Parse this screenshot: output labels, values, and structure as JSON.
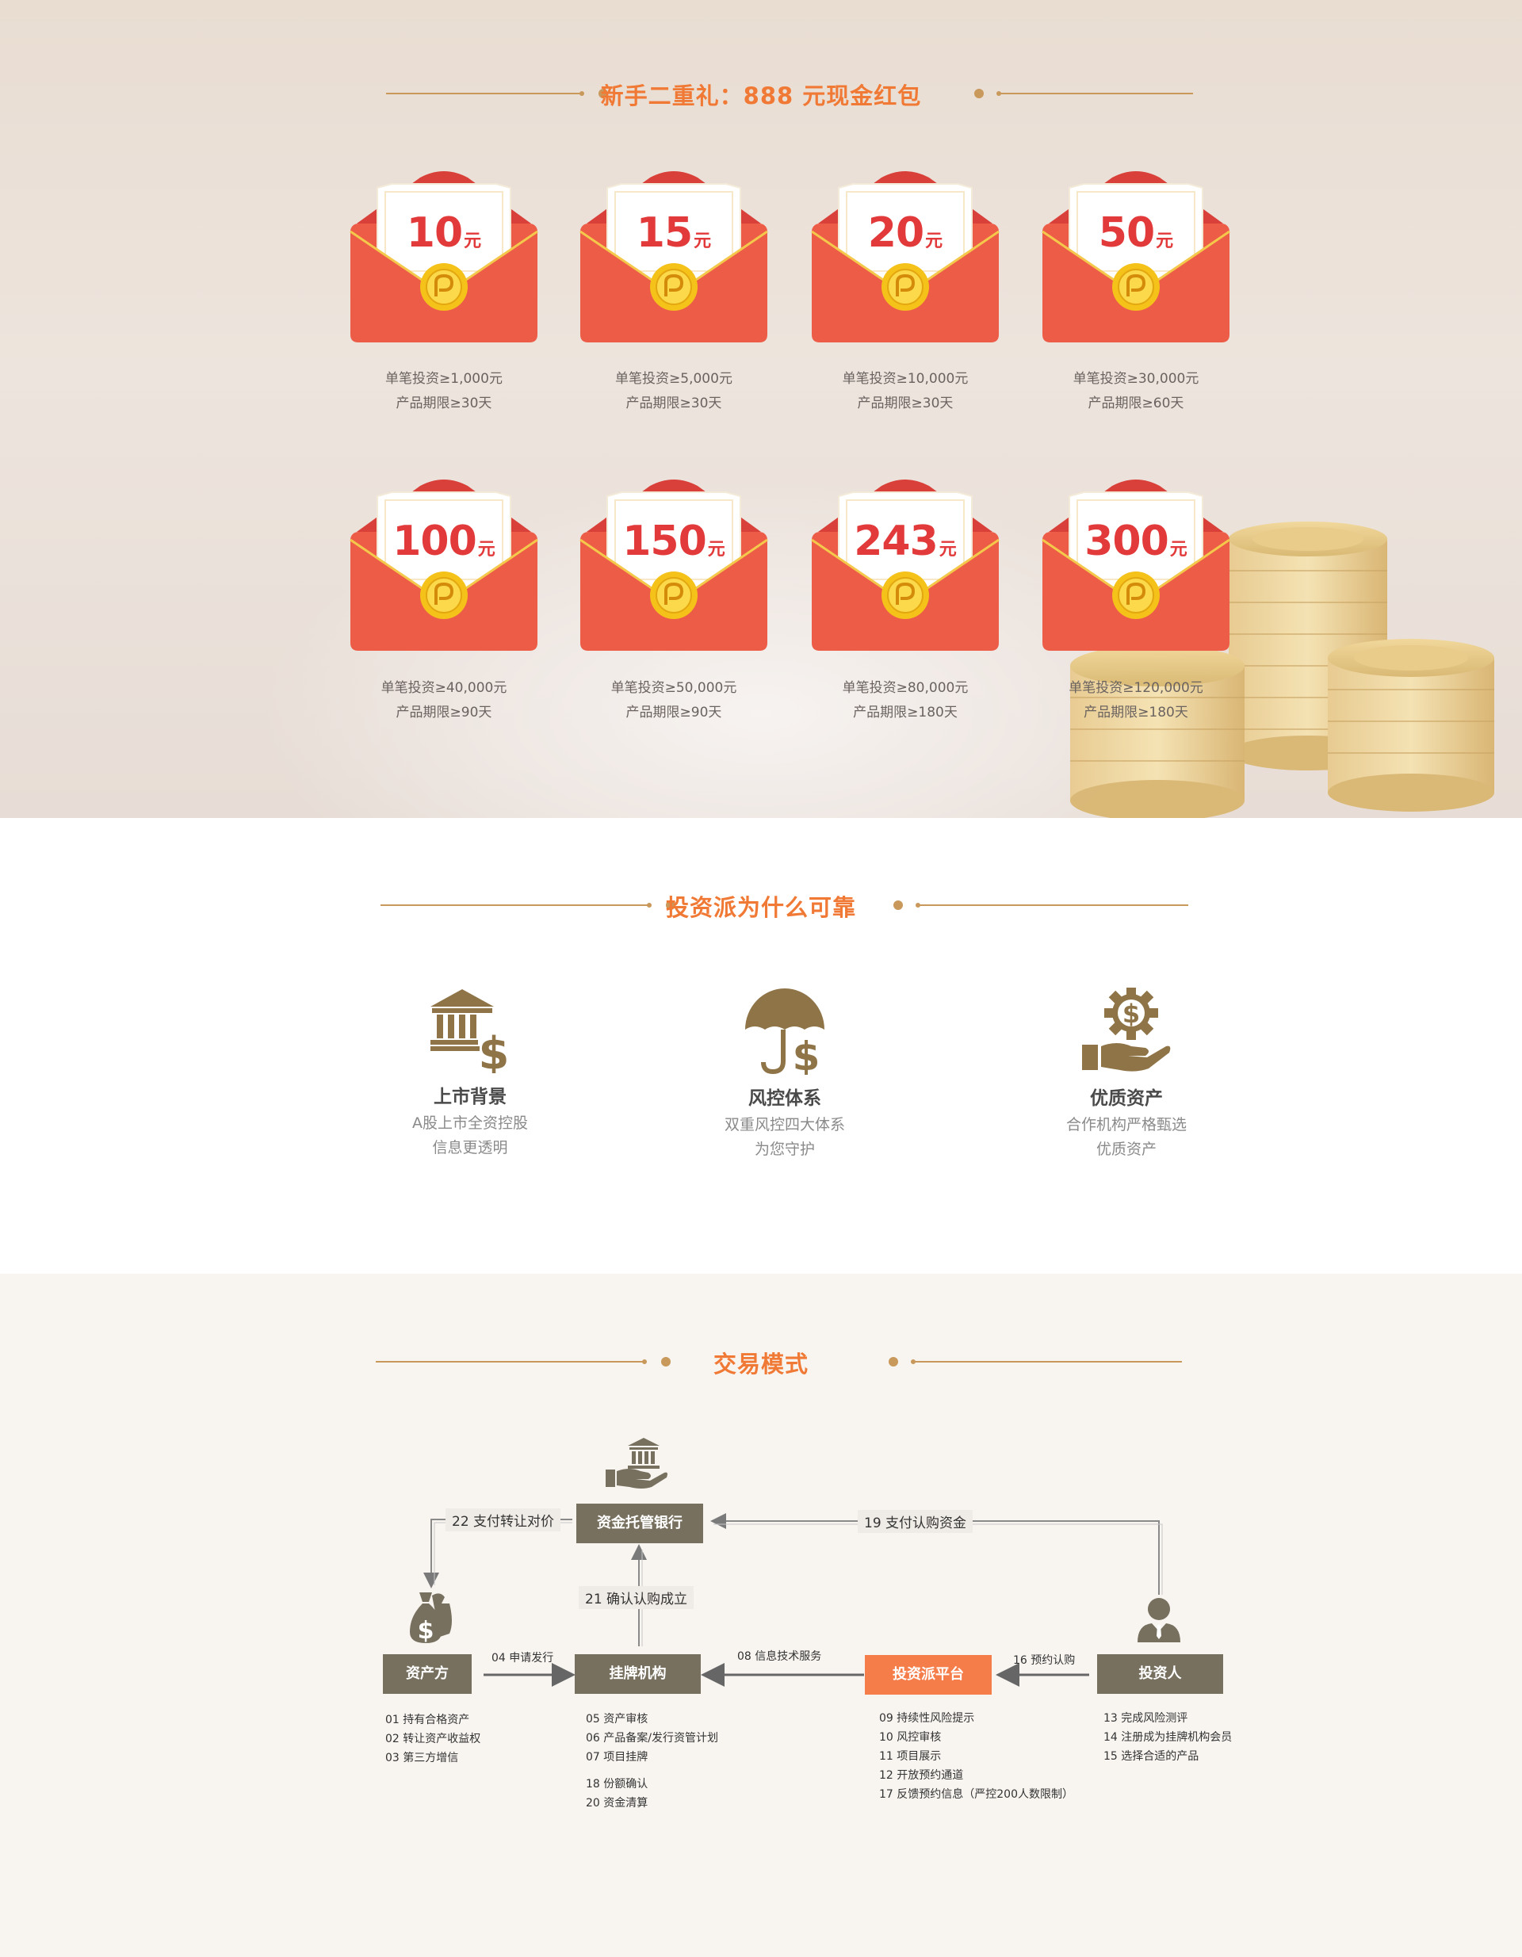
{
  "section1": {
    "title": "新手二重礼：888 元现金红包",
    "unit": "元",
    "envelopes": [
      {
        "amount": "10",
        "line1": "单笔投资≥1,000元",
        "line2": "产品期限≥30天"
      },
      {
        "amount": "15",
        "line1": "单笔投资≥5,000元",
        "line2": "产品期限≥30天"
      },
      {
        "amount": "20",
        "line1": "单笔投资≥10,000元",
        "line2": "产品期限≥30天"
      },
      {
        "amount": "50",
        "line1": "单笔投资≥30,000元",
        "line2": "产品期限≥60天"
      },
      {
        "amount": "100",
        "line1": "单笔投资≥40,000元",
        "line2": "产品期限≥90天"
      },
      {
        "amount": "150",
        "line1": "单笔投资≥50,000元",
        "line2": "产品期限≥90天"
      },
      {
        "amount": "243",
        "line1": "单笔投资≥80,000元",
        "line2": "产品期限≥180天"
      },
      {
        "amount": "300",
        "line1": "单笔投资≥120,000元",
        "line2": "产品期限≥180天"
      }
    ]
  },
  "section2": {
    "title": "投资派为什么可靠",
    "features": [
      {
        "icon": "bank-dollar-icon",
        "title": "上市背景",
        "desc1": "A股上市全资控股",
        "desc2": "信息更透明"
      },
      {
        "icon": "umbrella-dollar-icon",
        "title": "风控体系",
        "desc1": "双重风控四大体系",
        "desc2": "为您守护"
      },
      {
        "icon": "hand-gear-dollar-icon",
        "title": "优质资产",
        "desc1": "合作机构严格甄选",
        "desc2": "优质资产"
      }
    ]
  },
  "section3": {
    "title": "交易模式",
    "nodes": {
      "bank": "资金托管银行",
      "asset": "资产方",
      "listing": "挂牌机构",
      "platform": "投资派平台",
      "investor": "投资人"
    },
    "flows": {
      "f22": "22 支付转让对价",
      "f19": "19 支付认购资金",
      "f21": "21 确认认购成立",
      "f04": "04 申请发行",
      "f08": "08 信息技术服务",
      "f16": "16 预约认购"
    },
    "steps": {
      "asset": [
        "01 持有合格资产",
        "02 转让资产收益权",
        "03 第三方增信"
      ],
      "listing": [
        "05 资产审核",
        "06 产品备案/发行资管计划",
        "07 项目挂牌",
        "18 份额确认",
        "20 资金清算"
      ],
      "platform": [
        "09 持续性风险提示",
        "10 风控审核",
        "11 项目展示",
        "12 开放预约通道",
        "17 反馈预约信息（严控200人数限制）"
      ],
      "investor": [
        "13 完成风险测评",
        "14 注册成为挂牌机构会员",
        "15 选择合适的产品"
      ]
    }
  },
  "colors": {
    "accent": "#f07a35",
    "gold": "#c9985b",
    "envelope_red": "#ec5c47",
    "node_gray": "#77705f",
    "platform_orange": "#f57d4a",
    "icon_brown": "#8f7448"
  }
}
